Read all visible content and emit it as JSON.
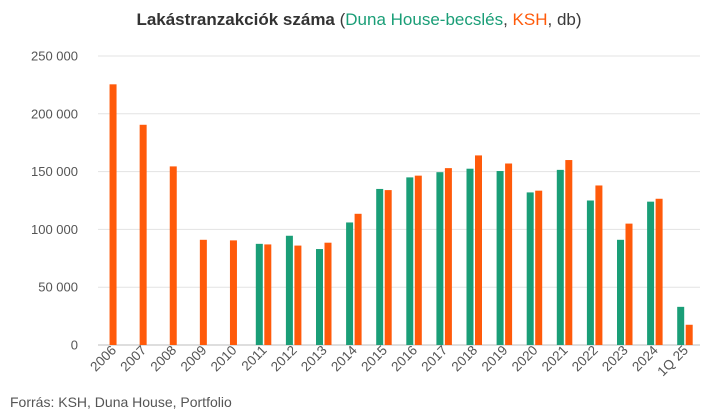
{
  "chart_data": {
    "type": "bar",
    "title_main": "Lakástranzakciók száma",
    "title_open": " (",
    "title_series1": "Duna House-becslés",
    "title_sep1": ", ",
    "title_series2": "KSH",
    "title_sep2": ", db)",
    "categories": [
      "2006",
      "2007",
      "2008",
      "2009",
      "2010",
      "2011",
      "2012",
      "2013",
      "2014",
      "2015",
      "2016",
      "2017",
      "2018",
      "2019",
      "2020",
      "2021",
      "2022",
      "2023",
      "2024",
      "1Q 25"
    ],
    "series": [
      {
        "name": "Duna House-becslés",
        "color": "#1a9e77",
        "values": [
          null,
          null,
          null,
          null,
          null,
          87500,
          94500,
          83000,
          106000,
          135000,
          145000,
          149500,
          152500,
          150500,
          132000,
          151500,
          125000,
          91000,
          124000,
          33000
        ]
      },
      {
        "name": "KSH",
        "color": "#ff5a0a",
        "values": [
          225500,
          190500,
          154500,
          91000,
          90500,
          87000,
          86000,
          88500,
          113500,
          134000,
          146500,
          153000,
          164000,
          157000,
          133500,
          160000,
          138000,
          105000,
          126500,
          17500
        ]
      }
    ],
    "ylim": [
      0,
      250000
    ],
    "yticks": [
      0,
      50000,
      100000,
      150000,
      200000,
      250000
    ],
    "ytick_labels": [
      "0",
      "50 000",
      "100 000",
      "150 000",
      "200 000",
      "250 000"
    ],
    "grid": true,
    "source": "Forrás: KSH, Duna House, Portfolio"
  }
}
